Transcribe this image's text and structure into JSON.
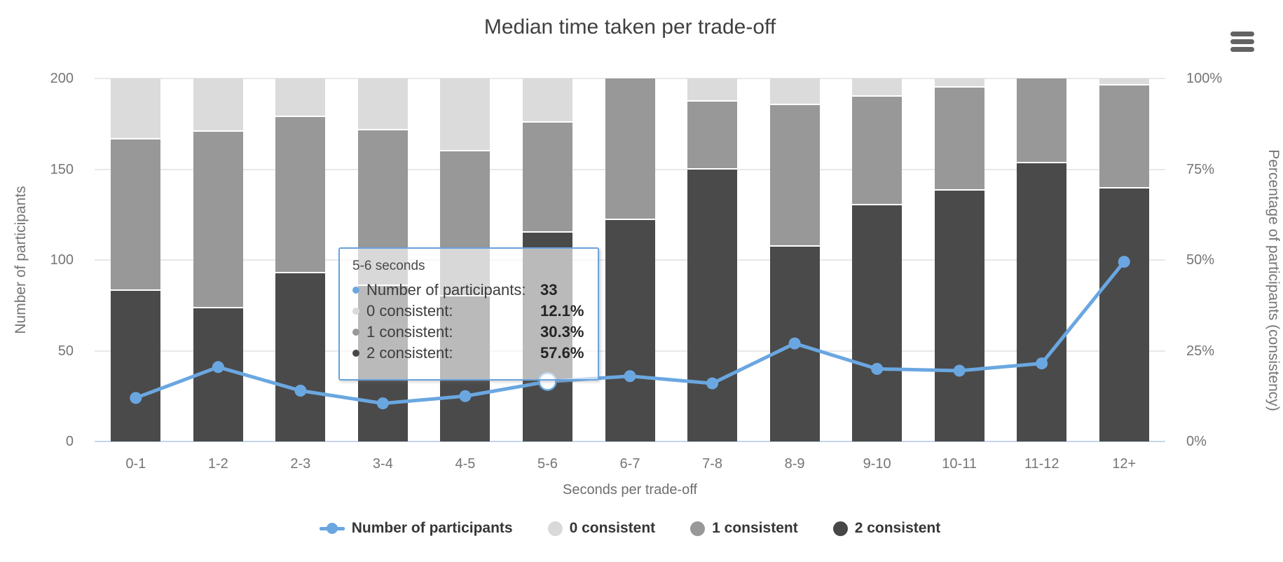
{
  "title": "Median time taken per trade-off",
  "menu": {
    "icon": "hamburger-menu-icon"
  },
  "colors": {
    "line_blue": "#6aa7e1",
    "light_gray": "#dbdbdb",
    "mid_gray": "#989898",
    "dark_gray": "#4a4a4a",
    "gridline": "#e8e8e8",
    "baseline": "#c5d5ee"
  },
  "chart_data": {
    "type": "combo-stacked-bar-line",
    "categories": [
      "0-1",
      "1-2",
      "2-3",
      "3-4",
      "4-5",
      "5-6",
      "6-7",
      "7-8",
      "8-9",
      "9-10",
      "10-11",
      "11-12",
      "12+"
    ],
    "xlabel": "Seconds per trade-off",
    "y_left": {
      "label": "Number of participants",
      "ticks": [
        0,
        50,
        100,
        150,
        200
      ],
      "range": [
        0,
        200
      ]
    },
    "y_right": {
      "label": "Percentage of participants (consistency)",
      "ticks": [
        "0%",
        "25%",
        "50%",
        "75%",
        "100%"
      ],
      "range": [
        0,
        100
      ]
    },
    "grid": true,
    "highlight_index": 5,
    "series": [
      {
        "name": "Number of participants",
        "type": "line",
        "color": "#6aa7e1",
        "values": [
          24,
          41,
          28,
          21,
          25,
          33,
          36,
          32,
          54,
          40,
          39,
          43,
          99
        ]
      },
      {
        "name": "0 consistent",
        "type": "bar",
        "color": "#dbdbdb",
        "unit": "%",
        "values": [
          16.7,
          14.6,
          10.7,
          14.3,
          20.0,
          12.1,
          0,
          6.3,
          7.4,
          5.0,
          2.6,
          0,
          2.0
        ]
      },
      {
        "name": "1 consistent",
        "type": "bar",
        "color": "#989898",
        "unit": "%",
        "values": [
          41.7,
          48.8,
          42.9,
          42.9,
          40.0,
          30.3,
          38.9,
          18.7,
          38.9,
          30.0,
          28.2,
          23.3,
          28.3
        ]
      },
      {
        "name": "2 consistent",
        "type": "bar",
        "color": "#4a4a4a",
        "unit": "%",
        "values": [
          41.6,
          36.6,
          46.4,
          42.8,
          40.0,
          57.6,
          61.1,
          75.0,
          53.7,
          65.0,
          69.2,
          76.7,
          69.7
        ]
      }
    ],
    "legend_position": "bottom"
  },
  "tooltip": {
    "title": "5-6 seconds",
    "rows": [
      {
        "label": "Number of participants:",
        "value": "33",
        "dot_color": "#6aa7e1",
        "dot_name": "blue-dot-icon"
      },
      {
        "label": "0 consistent:",
        "value": "12.1%",
        "dot_color": "#d9d9d9",
        "dot_name": "light-gray-dot-icon"
      },
      {
        "label": "1 consistent:",
        "value": "30.3%",
        "dot_color": "#989898",
        "dot_name": "mid-gray-dot-icon"
      },
      {
        "label": "2 consistent:",
        "value": "57.6%",
        "dot_color": "#474747",
        "dot_name": "dark-gray-dot-icon"
      }
    ]
  },
  "legend": [
    {
      "label": "Number of participants",
      "marker": "line-dot",
      "color": "#6aa7e1"
    },
    {
      "label": "0 consistent",
      "marker": "circle",
      "color": "#d9d9d9"
    },
    {
      "label": "1 consistent",
      "marker": "circle",
      "color": "#989898"
    },
    {
      "label": "2 consistent",
      "marker": "circle",
      "color": "#474747"
    }
  ]
}
